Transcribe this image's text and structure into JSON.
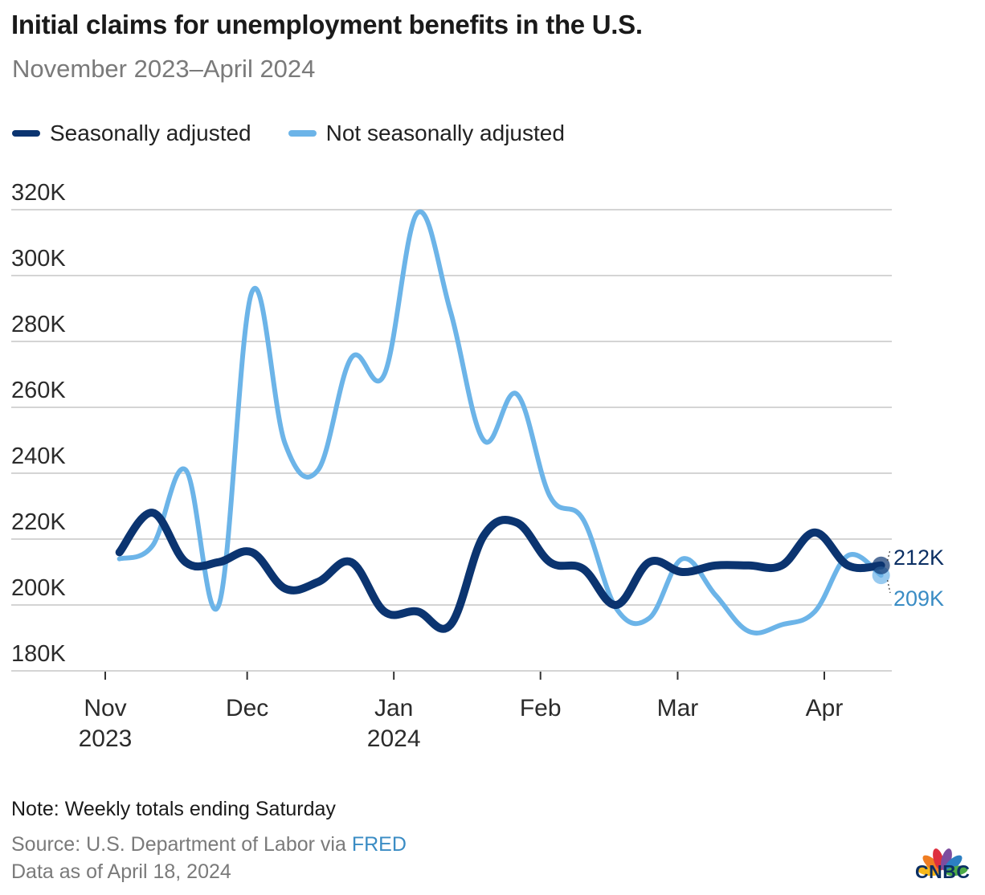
{
  "header": {
    "title": "Initial claims for unemployment benefits in the U.S.",
    "subtitle": "November 2023–April 2024"
  },
  "legend": [
    {
      "label": "Seasonally adjusted",
      "color": "#0b3470"
    },
    {
      "label": "Not seasonally adjusted",
      "color": "#6cb4e8"
    }
  ],
  "footer": {
    "note": "Note: Weekly totals ending Saturday",
    "source_prefix": "Source: U.S. Department of Labor via ",
    "source_link": "FRED",
    "as_of": "Data as of April 18, 2024"
  },
  "logo": {
    "text": "CNBC",
    "colors": [
      "#f6b719",
      "#ef7d22",
      "#de2f3f",
      "#7d4d9f",
      "#2c7fc2",
      "#4dab47"
    ]
  },
  "chart_data": {
    "type": "line",
    "title": "Initial claims for unemployment benefits in the U.S.",
    "subtitle": "November 2023–April 2024",
    "xlabel": "",
    "ylabel": "",
    "ylim": [
      180000,
      320000
    ],
    "yticks": [
      180000,
      200000,
      220000,
      240000,
      260000,
      280000,
      300000,
      320000
    ],
    "ytick_labels": [
      "180K",
      "200K",
      "220K",
      "240K",
      "260K",
      "280K",
      "300K",
      "320K"
    ],
    "xrange": [
      "2023-11-01",
      "2024-04-16"
    ],
    "xticks": [
      {
        "date": "2023-11-01",
        "label": "Nov",
        "label2": "2023"
      },
      {
        "date": "2023-12-01",
        "label": "Dec",
        "label2": ""
      },
      {
        "date": "2024-01-01",
        "label": "Jan",
        "label2": "2024"
      },
      {
        "date": "2024-02-01",
        "label": "Feb",
        "label2": ""
      },
      {
        "date": "2024-03-01",
        "label": "Mar",
        "label2": ""
      },
      {
        "date": "2024-04-01",
        "label": "Apr",
        "label2": ""
      }
    ],
    "grid": true,
    "legend_position": "top-left",
    "x": [
      "2023-11-04",
      "2023-11-11",
      "2023-11-18",
      "2023-11-25",
      "2023-12-02",
      "2023-12-09",
      "2023-12-16",
      "2023-12-23",
      "2023-12-30",
      "2024-01-06",
      "2024-01-13",
      "2024-01-20",
      "2024-01-27",
      "2024-02-03",
      "2024-02-10",
      "2024-02-17",
      "2024-02-24",
      "2024-03-02",
      "2024-03-09",
      "2024-03-16",
      "2024-03-23",
      "2024-03-30",
      "2024-04-06",
      "2024-04-13"
    ],
    "series": [
      {
        "name": "Not seasonally adjusted",
        "color": "#6cb4e8",
        "values": [
          214000,
          218000,
          241000,
          200000,
          295000,
          249000,
          241000,
          275000,
          270000,
          319000,
          289000,
          250000,
          264000,
          233000,
          226000,
          199000,
          196000,
          214000,
          203000,
          192000,
          194000,
          198000,
          215000,
          209000
        ],
        "end_label": "209K",
        "end_label_color": "#3a8cc4"
      },
      {
        "name": "Seasonally adjusted",
        "color": "#0b3470",
        "values": [
          216000,
          228000,
          213000,
          213000,
          216000,
          205000,
          207000,
          213000,
          198000,
          198000,
          194000,
          221000,
          225000,
          213000,
          211000,
          200000,
          213000,
          210000,
          212000,
          212000,
          212000,
          222000,
          212000,
          212000
        ],
        "end_label": "212K",
        "end_label_color": "#0b2f63"
      }
    ]
  }
}
